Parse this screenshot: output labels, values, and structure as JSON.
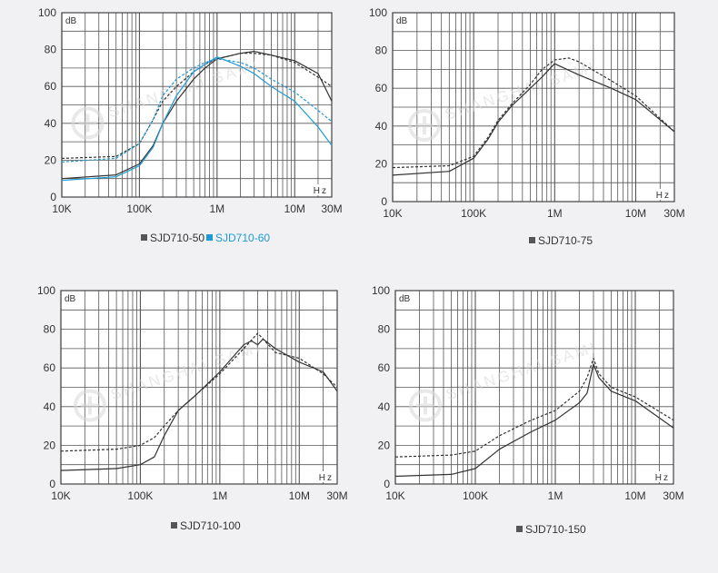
{
  "colors": {
    "background": "#f1f1f3",
    "plot_bg": "#ffffff",
    "grid": "#555555",
    "frame": "#444444",
    "series_dark": "#333333",
    "series_blue": "#1e9ad6",
    "legend_gray": "#555555",
    "watermark": "#d8d8da"
  },
  "watermark_text": "SHANGHAI SAMI",
  "chart_data": [
    {
      "type": "line",
      "x_scale": "log",
      "y_label": "dB",
      "x_unit": "Hz",
      "xlim": [
        10000,
        30000000
      ],
      "ylim": [
        0,
        100
      ],
      "yticks": [
        0,
        20,
        40,
        60,
        80,
        100
      ],
      "ytick_labels": [
        "0",
        "20",
        "40",
        "60",
        "80",
        "100"
      ],
      "xticks": [
        10000,
        100000,
        1000000,
        10000000,
        30000000
      ],
      "xtick_labels": [
        "10K",
        "100K",
        "1M",
        "10M",
        "30M"
      ],
      "grid": true,
      "legend": {
        "position": "bottom-center",
        "items": [
          {
            "label": "SJD710-50",
            "color": "#555555"
          },
          {
            "label": "SJD710-60",
            "color": "#1e9ad6"
          }
        ]
      },
      "series": [
        {
          "name": "SJD710-50",
          "color": "#333333",
          "style": "solid",
          "x": [
            10000,
            50000,
            100000,
            150000,
            200000,
            300000,
            500000,
            700000,
            1000000,
            2000000,
            3000000,
            5000000,
            10000000,
            20000000,
            30000000
          ],
          "y": [
            10,
            12,
            18,
            28,
            40,
            52,
            64,
            70,
            75,
            78,
            79,
            77,
            74,
            67,
            52
          ]
        },
        {
          "name": "SJD710-50",
          "color": "#333333",
          "style": "dashed",
          "x": [
            10000,
            50000,
            100000,
            150000,
            200000,
            300000,
            500000,
            700000,
            1000000,
            2000000,
            3000000,
            5000000,
            10000000,
            20000000,
            30000000
          ],
          "y": [
            21,
            22,
            29,
            42,
            52,
            60,
            68,
            72,
            75,
            78,
            78,
            77,
            73,
            65,
            60
          ]
        },
        {
          "name": "SJD710-60",
          "color": "#1e9ad6",
          "style": "solid",
          "x": [
            10000,
            50000,
            100000,
            150000,
            200000,
            300000,
            500000,
            700000,
            1000000,
            2000000,
            3000000,
            5000000,
            10000000,
            20000000,
            30000000
          ],
          "y": [
            9,
            11,
            17,
            27,
            40,
            55,
            68,
            72,
            76,
            71,
            67,
            60,
            52,
            38,
            28
          ]
        },
        {
          "name": "SJD710-60",
          "color": "#1e9ad6",
          "style": "dashed",
          "x": [
            10000,
            50000,
            100000,
            150000,
            200000,
            300000,
            500000,
            700000,
            1000000,
            2000000,
            3000000,
            5000000,
            10000000,
            20000000,
            30000000
          ],
          "y": [
            19,
            21,
            29,
            42,
            55,
            64,
            70,
            73,
            75,
            73,
            70,
            64,
            57,
            47,
            41
          ]
        }
      ]
    },
    {
      "type": "line",
      "x_scale": "log",
      "y_label": "dB",
      "x_unit": "Hz",
      "xlim": [
        10000,
        30000000
      ],
      "ylim": [
        0,
        100
      ],
      "yticks": [
        0,
        20,
        40,
        60,
        80,
        100
      ],
      "ytick_labels": [
        "0",
        "20",
        "40",
        "60",
        "80",
        "100"
      ],
      "xticks": [
        10000,
        100000,
        1000000,
        10000000,
        30000000
      ],
      "xtick_labels": [
        "10K",
        "100K",
        "1M",
        "10M",
        "30M"
      ],
      "grid": true,
      "legend": {
        "position": "bottom-center",
        "items": [
          {
            "label": "SJD710-75",
            "color": "#555555"
          }
        ]
      },
      "series": [
        {
          "name": "SJD710-75",
          "color": "#333333",
          "style": "solid",
          "x": [
            10000,
            50000,
            100000,
            150000,
            200000,
            300000,
            500000,
            700000,
            900000,
            1000000,
            2000000,
            5000000,
            10000000,
            30000000
          ],
          "y": [
            14,
            16,
            23,
            33,
            42,
            51,
            60,
            66,
            71,
            73,
            67,
            60,
            54,
            37
          ]
        },
        {
          "name": "SJD710-75",
          "color": "#333333",
          "style": "dashed",
          "x": [
            10000,
            50000,
            100000,
            150000,
            200000,
            300000,
            500000,
            700000,
            1000000,
            1500000,
            2000000,
            5000000,
            10000000,
            30000000
          ],
          "y": [
            18,
            19,
            24,
            34,
            43,
            52,
            62,
            70,
            75,
            76,
            74,
            64,
            56,
            37
          ]
        }
      ]
    },
    {
      "type": "line",
      "x_scale": "log",
      "y_label": "dB",
      "x_unit": "Hz",
      "xlim": [
        10000,
        30000000
      ],
      "ylim": [
        0,
        100
      ],
      "yticks": [
        0,
        20,
        40,
        60,
        80,
        100
      ],
      "ytick_labels": [
        "0",
        "20",
        "40",
        "60",
        "80",
        "100"
      ],
      "xticks": [
        10000,
        100000,
        1000000,
        10000000,
        30000000
      ],
      "xtick_labels": [
        "10K",
        "100K",
        "1M",
        "10M",
        "30M"
      ],
      "grid": true,
      "legend": {
        "position": "bottom-center",
        "items": [
          {
            "label": "SJD710-100",
            "color": "#555555"
          }
        ]
      },
      "series": [
        {
          "name": "SJD710-100",
          "color": "#333333",
          "style": "solid",
          "x": [
            10000,
            50000,
            100000,
            150000,
            200000,
            300000,
            500000,
            1000000,
            2000000,
            2500000,
            3000000,
            3500000,
            5000000,
            10000000,
            20000000,
            30000000
          ],
          "y": [
            7,
            8,
            10,
            14,
            25,
            38,
            46,
            58,
            72,
            74,
            72,
            75,
            70,
            63,
            58,
            48
          ]
        },
        {
          "name": "SJD710-100",
          "color": "#333333",
          "style": "dashed",
          "x": [
            10000,
            50000,
            100000,
            150000,
            200000,
            300000,
            500000,
            1000000,
            2000000,
            3000000,
            3500000,
            5000000,
            10000000,
            20000000,
            30000000
          ],
          "y": [
            17,
            18,
            20,
            24,
            30,
            38,
            46,
            57,
            70,
            78,
            75,
            68,
            65,
            57,
            50
          ]
        }
      ]
    },
    {
      "type": "line",
      "x_scale": "log",
      "y_label": "dB",
      "x_unit": "Hz",
      "xlim": [
        10000,
        30000000
      ],
      "ylim": [
        0,
        100
      ],
      "yticks": [
        0,
        20,
        40,
        60,
        80,
        100
      ],
      "ytick_labels": [
        "0",
        "20",
        "40",
        "60",
        "80",
        "100"
      ],
      "xticks": [
        10000,
        100000,
        1000000,
        10000000,
        30000000
      ],
      "xtick_labels": [
        "10K",
        "100K",
        "1M",
        "10M",
        "30M"
      ],
      "grid": true,
      "legend": {
        "position": "bottom-center",
        "items": [
          {
            "label": "SJD710-150",
            "color": "#555555"
          }
        ]
      },
      "series": [
        {
          "name": "SJD710-150",
          "color": "#333333",
          "style": "solid",
          "x": [
            10000,
            50000,
            100000,
            200000,
            500000,
            1000000,
            2000000,
            2500000,
            3000000,
            3500000,
            5000000,
            10000000,
            30000000
          ],
          "y": [
            4,
            5,
            8,
            18,
            27,
            33,
            42,
            47,
            62,
            55,
            48,
            43,
            29
          ]
        },
        {
          "name": "SJD710-150",
          "color": "#333333",
          "style": "dashed",
          "x": [
            10000,
            50000,
            100000,
            200000,
            500000,
            1000000,
            2000000,
            2500000,
            3000000,
            3500000,
            5000000,
            10000000,
            30000000
          ],
          "y": [
            14,
            15,
            17,
            25,
            33,
            38,
            48,
            55,
            65,
            57,
            50,
            45,
            33
          ]
        }
      ]
    }
  ]
}
